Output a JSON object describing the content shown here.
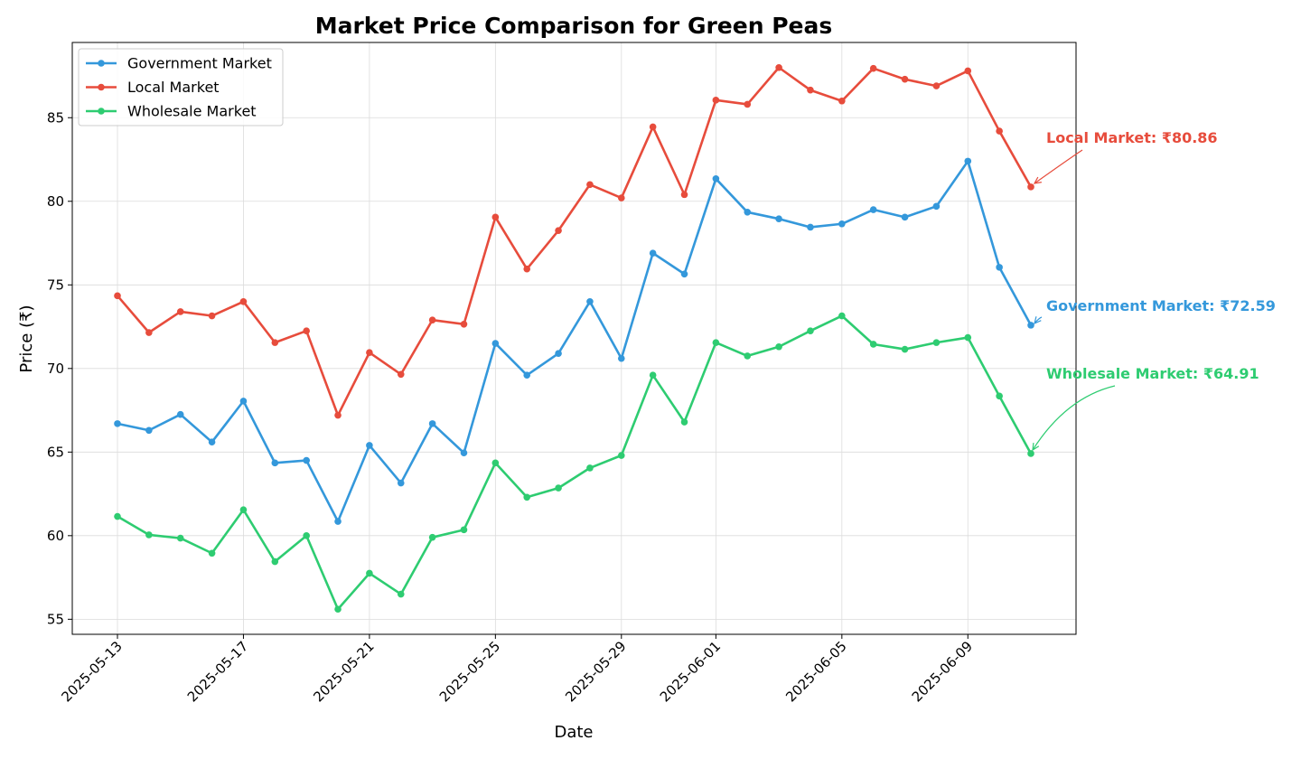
{
  "chart_data": {
    "type": "line",
    "title": "Market Price Comparison for Green Peas",
    "xlabel": "Date",
    "ylabel": "Price (₹)",
    "ylim": [
      54.1,
      89.5
    ],
    "yticks": [
      55,
      60,
      65,
      70,
      75,
      80,
      85
    ],
    "grid": true,
    "legend_position": "top-left",
    "x": [
      "2025-05-13",
      "2025-05-14",
      "2025-05-15",
      "2025-05-16",
      "2025-05-17",
      "2025-05-18",
      "2025-05-19",
      "2025-05-20",
      "2025-05-21",
      "2025-05-22",
      "2025-05-23",
      "2025-05-24",
      "2025-05-25",
      "2025-05-26",
      "2025-05-27",
      "2025-05-28",
      "2025-05-29",
      "2025-05-30",
      "2025-05-31",
      "2025-06-01",
      "2025-06-02",
      "2025-06-03",
      "2025-06-04",
      "2025-06-05",
      "2025-06-06",
      "2025-06-07",
      "2025-06-08",
      "2025-06-09",
      "2025-06-10",
      "2025-06-11"
    ],
    "xticks": [
      "2025-05-13",
      "2025-05-17",
      "2025-05-21",
      "2025-05-25",
      "2025-05-29",
      "2025-06-01",
      "2025-06-05",
      "2025-06-09"
    ],
    "series": [
      {
        "name": "Government Market",
        "color": "#3498db",
        "values": [
          66.7,
          66.3,
          67.25,
          65.6,
          68.05,
          64.35,
          64.5,
          60.85,
          65.4,
          63.15,
          66.7,
          64.95,
          71.5,
          69.6,
          70.9,
          74.0,
          70.6,
          76.9,
          75.65,
          81.35,
          79.35,
          78.95,
          78.45,
          78.65,
          79.5,
          79.05,
          79.7,
          82.4,
          76.05,
          72.59
        ]
      },
      {
        "name": "Local Market",
        "color": "#e74c3c",
        "values": [
          74.35,
          72.15,
          73.4,
          73.15,
          74.0,
          71.55,
          72.25,
          67.2,
          70.95,
          69.65,
          72.9,
          72.65,
          79.05,
          75.95,
          78.25,
          81.0,
          80.2,
          84.45,
          80.4,
          86.05,
          85.8,
          88.0,
          86.65,
          86.0,
          87.95,
          87.3,
          86.9,
          87.8,
          84.2,
          80.86
        ]
      },
      {
        "name": "Wholesale Market",
        "color": "#2ecc71",
        "values": [
          61.15,
          60.05,
          59.85,
          58.95,
          61.55,
          58.45,
          60.0,
          55.6,
          57.75,
          56.5,
          59.9,
          60.35,
          64.35,
          62.3,
          62.85,
          64.05,
          64.8,
          69.6,
          66.8,
          71.55,
          70.75,
          71.3,
          72.25,
          73.15,
          71.45,
          71.15,
          71.55,
          71.85,
          68.35,
          64.91
        ]
      }
    ],
    "annotations": [
      {
        "series": "Local Market",
        "text": "Local Market: ₹80.86",
        "color": "#e74c3c"
      },
      {
        "series": "Government Market",
        "text": "Government Market: ₹72.59",
        "color": "#3498db"
      },
      {
        "series": "Wholesale Market",
        "text": "Wholesale Market: ₹64.91",
        "color": "#2ecc71"
      }
    ]
  }
}
